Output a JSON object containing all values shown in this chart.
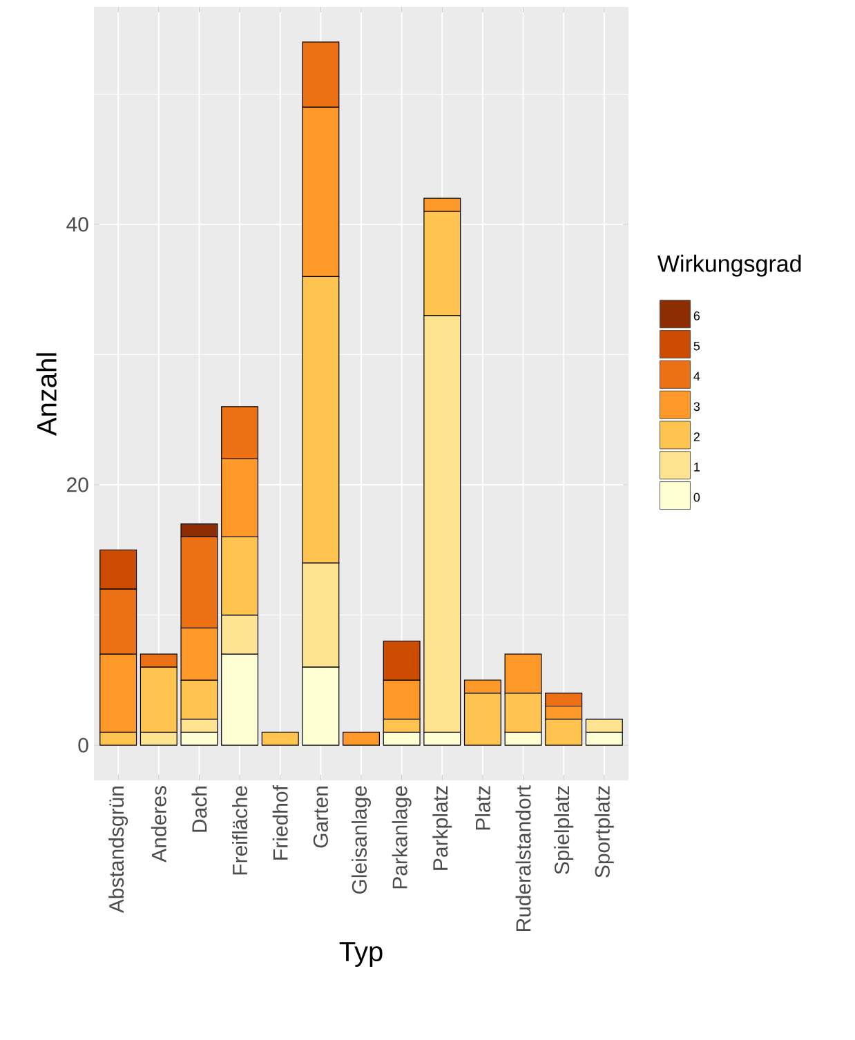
{
  "chart_data": {
    "type": "bar",
    "stacked": true,
    "xlabel": "Typ",
    "ylabel": "Anzahl",
    "legend_title": "Wirkungsgrad",
    "categories": [
      "Abstandsgrün",
      "Anderes",
      "Dach",
      "Freifläche",
      "Friedhof",
      "Garten",
      "Gleisanlage",
      "Parkanlage",
      "Parkplatz",
      "Platz",
      "Ruderalstandort",
      "Spielplatz",
      "Sportplatz"
    ],
    "series": [
      {
        "name": "0",
        "color": "#ffffd4",
        "values": [
          null,
          null,
          1,
          7,
          null,
          6,
          null,
          1,
          1,
          null,
          1,
          null,
          1
        ]
      },
      {
        "name": "1",
        "color": "#fee391",
        "values": [
          null,
          1,
          1,
          3,
          null,
          8,
          null,
          null,
          32,
          null,
          null,
          null,
          1
        ]
      },
      {
        "name": "2",
        "color": "#fec44f",
        "values": [
          1,
          5,
          3,
          6,
          1,
          22,
          null,
          1,
          8,
          4,
          3,
          2,
          null
        ]
      },
      {
        "name": "3",
        "color": "#fe9929",
        "values": [
          6,
          null,
          4,
          6,
          null,
          13,
          1,
          3,
          1,
          1,
          3,
          1,
          null
        ]
      },
      {
        "name": "4",
        "color": "#ec7014",
        "values": [
          5,
          1,
          7,
          4,
          null,
          5,
          null,
          null,
          null,
          null,
          null,
          1,
          null
        ]
      },
      {
        "name": "5",
        "color": "#cc4c02",
        "values": [
          3,
          null,
          null,
          null,
          null,
          null,
          null,
          3,
          null,
          null,
          null,
          null,
          null
        ]
      },
      {
        "name": "6",
        "color": "#8c2d04",
        "values": [
          null,
          null,
          1,
          null,
          null,
          null,
          null,
          null,
          null,
          null,
          null,
          null,
          null
        ]
      }
    ],
    "ylim": [
      -2.7,
      56.7
    ],
    "yticks": [
      0,
      20,
      40
    ],
    "grid": true,
    "legend": "right"
  }
}
